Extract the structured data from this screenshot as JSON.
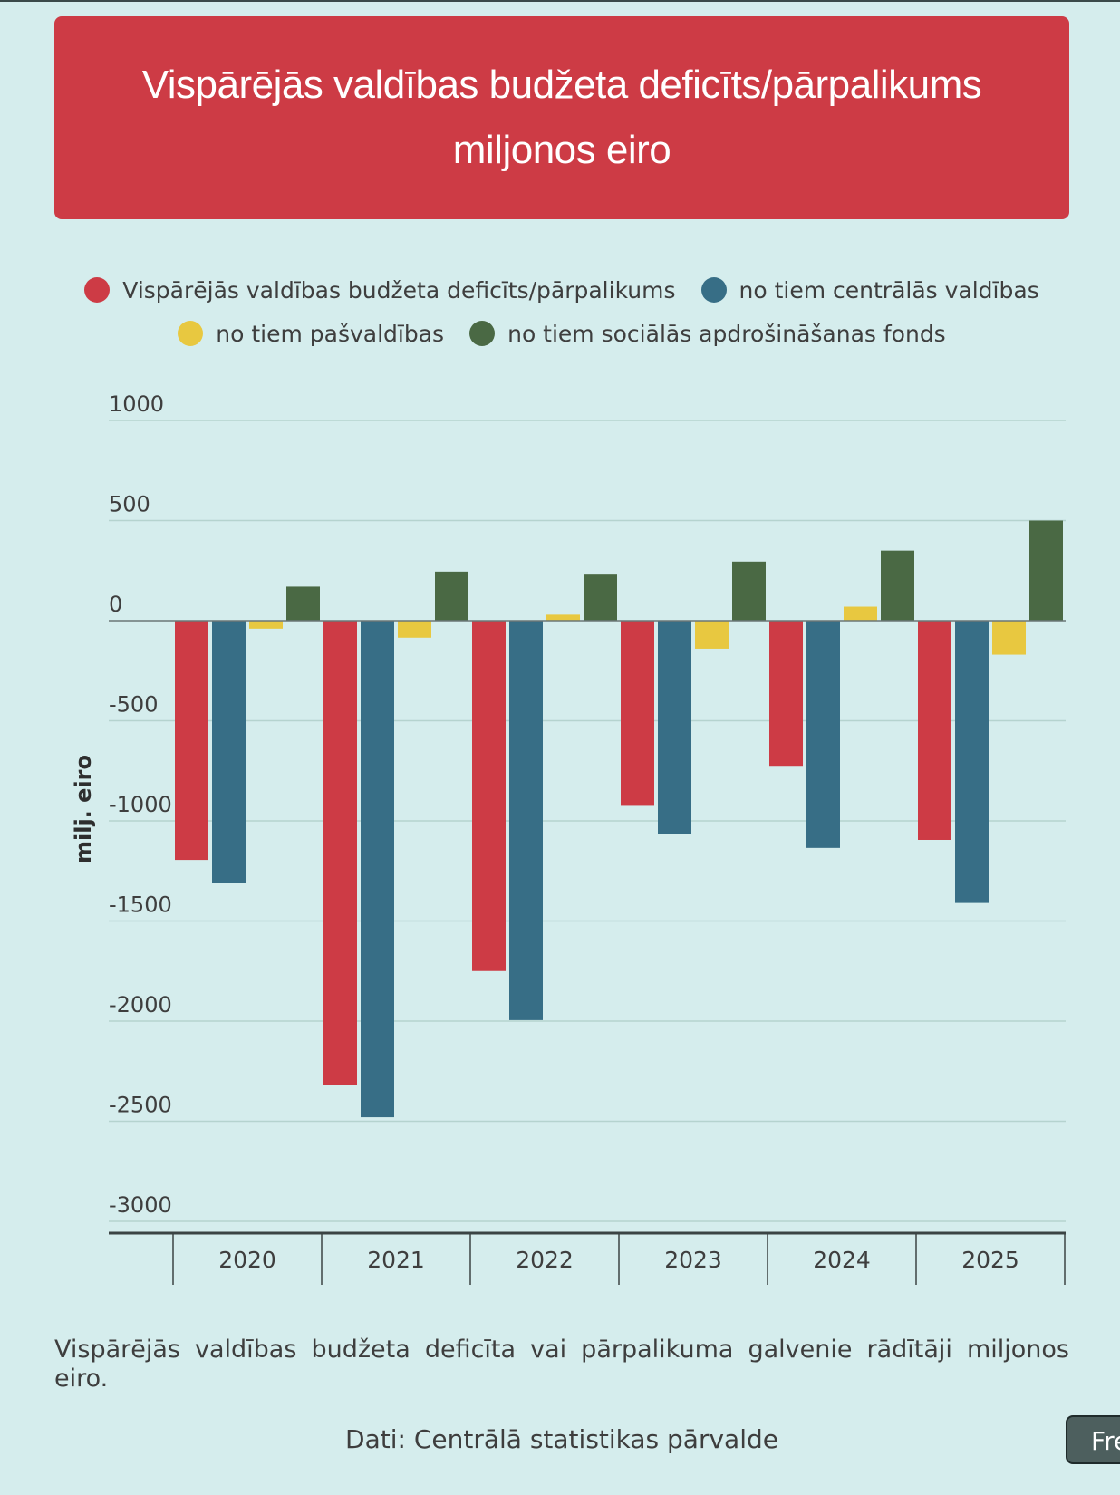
{
  "title": "Vispārējās valdības budžeta deficīts/pārpalikums miljonos eiro",
  "legend": [
    {
      "label": "Vispārējās valdības budžeta deficīts/pārpalikums",
      "color": "#cd3b45"
    },
    {
      "label": "no tiem centrālās valdības",
      "color": "#376e86"
    },
    {
      "label": "no tiem pašvaldības",
      "color": "#e8c840"
    },
    {
      "label": "no tiem sociālās apdrošināšanas fonds",
      "color": "#4a6944"
    }
  ],
  "chart_data": {
    "type": "bar",
    "categories": [
      "2020",
      "2021",
      "2022",
      "2023",
      "2024",
      "2025"
    ],
    "series": [
      {
        "name": "Vispārējās valdības budžeta deficīts/pārpalikums",
        "color": "#cd3b45",
        "values": [
          -1195,
          -2320,
          -1750,
          -925,
          -725,
          -1095
        ]
      },
      {
        "name": "no tiem centrālās valdības",
        "color": "#376e86",
        "values": [
          -1310,
          -2480,
          -1995,
          -1065,
          -1135,
          -1410
        ]
      },
      {
        "name": "no tiem pašvaldības",
        "color": "#e8c840",
        "values": [
          -40,
          -85,
          30,
          -140,
          70,
          -170
        ]
      },
      {
        "name": "no tiem sociālās apdrošināšanas fonds",
        "color": "#4a6944",
        "values": [
          170,
          245,
          230,
          295,
          350,
          500
        ]
      }
    ],
    "yticks": [
      1000,
      500,
      0,
      -500,
      -1000,
      -1500,
      -2000,
      -2500,
      -3000
    ],
    "ylim": [
      -3000,
      1000
    ],
    "ylabel": "milj. eiro",
    "xlabel": "",
    "title": "Vispārējās valdības budžeta deficīts/pārpalikums miljonos eiro"
  },
  "description": "Vispārējās valdības budžeta deficīta vai pārpalikuma galvenie rādītāji miljonos eiro.",
  "source": "Dati: Centrālā statistikas pārvalde",
  "corner_button": "Fre"
}
